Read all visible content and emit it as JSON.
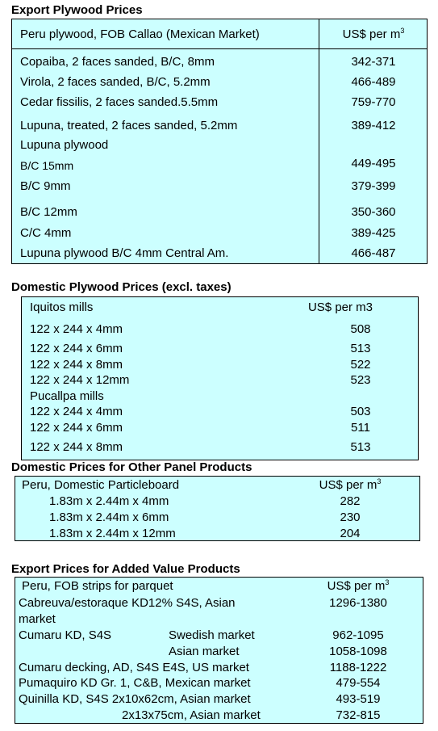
{
  "export_plywood": {
    "title": "Export Plywood Prices",
    "header_left": "Peru plywood, FOB Callao (Mexican Market)",
    "header_right": "US$ per m",
    "header_sup": "3",
    "rows": [
      {
        "label": "Copaiba, 2 faces sanded, B/C, 8mm",
        "value": "342-371"
      },
      {
        "label": "Virola, 2 faces sanded, B/C, 5.2mm",
        "value": "466-489"
      },
      {
        "label": "Cedar fissilis, 2 faces sanded.5.5mm",
        "value": "759-770"
      },
      {
        "label": "Lupuna, treated, 2 faces sanded, 5.2mm",
        "value": "389-412"
      },
      {
        "label": "Lupuna plywood",
        "value": ""
      },
      {
        "label": "B/C 15mm",
        "value": "449-495"
      },
      {
        "label": "B/C 9mm",
        "value": "379-399"
      },
      {
        "label": "B/C 12mm",
        "value": "350-360"
      },
      {
        "label": "C/C 4mm",
        "value": "389-425"
      },
      {
        "label": "Lupuna plywood B/C 4mm Central Am.",
        "value": "466-487"
      }
    ]
  },
  "domestic_plywood": {
    "title": "Domestic Plywood Prices (excl. taxes)",
    "header_left": "Iquitos mills",
    "header_right": "US$ per m3",
    "rows": [
      {
        "label": "122 x 244 x 4mm",
        "value": "508"
      },
      {
        "label": "122 x 244 x 6mm",
        "value": "513"
      },
      {
        "label": "122 x 244 x 8mm",
        "value": "522"
      },
      {
        "label": "122 x 244 x 12mm",
        "value": "523"
      },
      {
        "label": "Pucallpa mills",
        "value": ""
      },
      {
        "label": "122 x 244 x 4mm",
        "value": "503"
      },
      {
        "label": "122 x 244 x 6mm",
        "value": "511"
      },
      {
        "label": "122 x 244 x 8mm",
        "value": "513"
      }
    ]
  },
  "other_panel": {
    "title": "Domestic Prices for Other Panel Products",
    "header_left": "Peru, Domestic Particleboard",
    "header_right": "US$ per m",
    "header_sup": "3",
    "rows": [
      {
        "label": "1.83m x 2.44m x 4mm",
        "value": "282"
      },
      {
        "label": "1.83m x 2.44m x 6mm",
        "value": "230"
      },
      {
        "label": "1.83m x 2.44m x 12mm",
        "value": "204"
      }
    ]
  },
  "added_value": {
    "title": "Export Prices for Added Value Products",
    "header_left": "Peru, FOB strips for parquet",
    "header_right": "US$ per m",
    "header_sup": "3",
    "rows": [
      {
        "label": "Cabreuva/estoraque KD12% S4S, Asian",
        "mid": "",
        "value": "1296-1380"
      },
      {
        "label": "market",
        "mid": "",
        "value": ""
      },
      {
        "label": "Cumaru KD, S4S",
        "mid": "Swedish market",
        "value": "962-1095"
      },
      {
        "label": "",
        "mid": "Asian market",
        "value": "1058-1098"
      },
      {
        "label": "Cumaru decking, AD, S4S E4S,  US market",
        "mid": "",
        "value": "1188-1222"
      },
      {
        "label": "Pumaquiro KD Gr. 1, C&B,  Mexican market",
        "mid": "",
        "value": "479-554"
      },
      {
        "label": "Quinilla KD, S4S 2x10x62cm,  Asian market",
        "mid": "",
        "value": "493-519"
      },
      {
        "label": "",
        "mid": "2x13x75cm, Asian market",
        "value": "732-815"
      }
    ]
  }
}
